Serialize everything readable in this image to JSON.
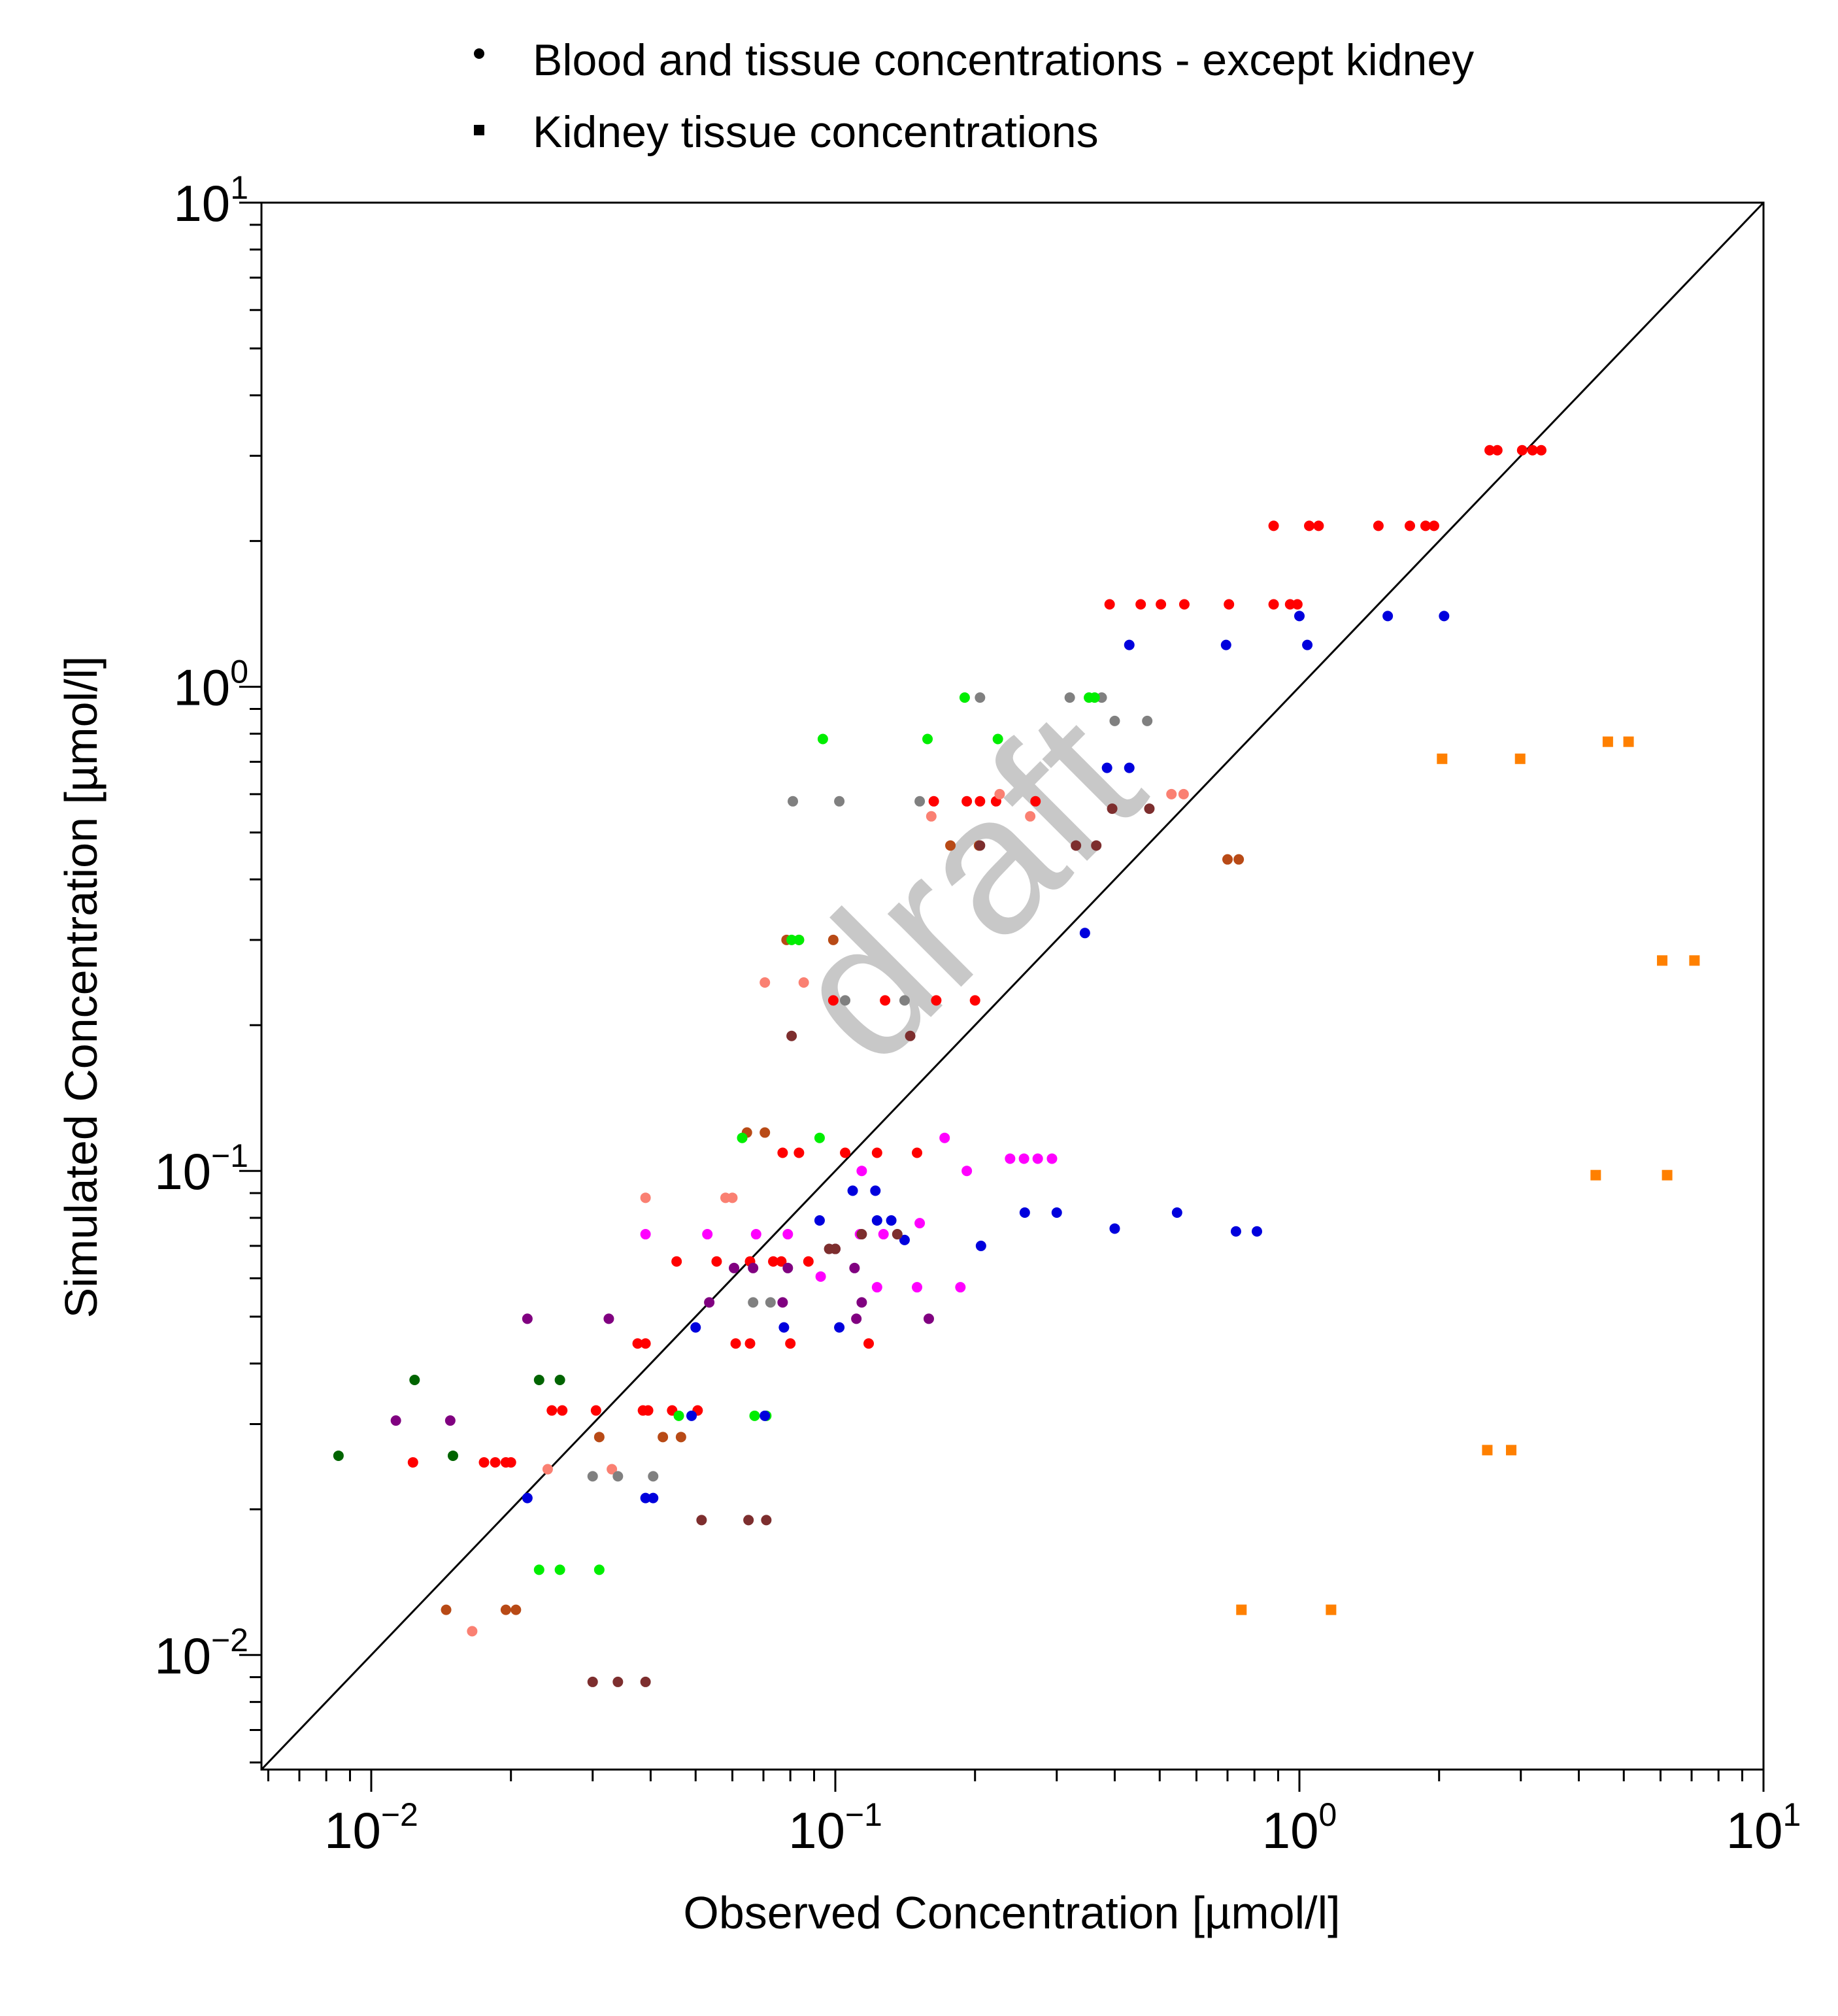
{
  "legend": {
    "items": [
      {
        "label": "Blood and tissue concentrations - except kidney",
        "marker": "circle"
      },
      {
        "label": "Kidney tissue concentrations",
        "marker": "square"
      }
    ]
  },
  "watermark": "draft",
  "chart_data": {
    "type": "scatter",
    "title": "",
    "xlabel": "Observed Concentration [µmol/l]",
    "ylabel": "Simulated Concentration [µmol/l]",
    "xscale": "log",
    "yscale": "log",
    "xlim": [
      0.0058,
      10
    ],
    "ylim": [
      0.0058,
      10
    ],
    "x_ticks": [
      {
        "base": "10",
        "exp": "−2"
      },
      {
        "base": "10",
        "exp": "−1"
      },
      {
        "base": "10",
        "exp": "0"
      },
      {
        "base": "10",
        "exp": "1"
      }
    ],
    "y_ticks": [
      {
        "base": "10",
        "exp": "−2"
      },
      {
        "base": "10",
        "exp": "−1"
      },
      {
        "base": "10",
        "exp": "0"
      },
      {
        "base": "10",
        "exp": "1"
      }
    ],
    "x_tick_values": [
      0.01,
      0.1,
      1,
      10
    ],
    "y_tick_values": [
      0.01,
      0.1,
      1,
      10
    ],
    "identity_line": true,
    "grid": false,
    "legend_position": "top-center",
    "series": [
      {
        "marker": "circle",
        "color": "#ff0000",
        "points": [
          [
            0.0123,
            0.025
          ],
          [
            0.0175,
            0.025
          ],
          [
            0.0185,
            0.025
          ],
          [
            0.0195,
            0.025
          ],
          [
            0.02,
            0.025
          ],
          [
            0.0245,
            0.032
          ],
          [
            0.0258,
            0.032
          ],
          [
            0.0305,
            0.032
          ],
          [
            0.0385,
            0.032
          ],
          [
            0.0395,
            0.032
          ],
          [
            0.0445,
            0.032
          ],
          [
            0.0505,
            0.032
          ],
          [
            0.0375,
            0.044
          ],
          [
            0.039,
            0.044
          ],
          [
            0.0455,
            0.065
          ],
          [
            0.0555,
            0.065
          ],
          [
            0.0655,
            0.065
          ],
          [
            0.0735,
            0.065
          ],
          [
            0.0765,
            0.065
          ],
          [
            0.0875,
            0.065
          ],
          [
            0.061,
            0.044
          ],
          [
            0.0655,
            0.044
          ],
          [
            0.08,
            0.044
          ],
          [
            0.077,
            0.109
          ],
          [
            0.0835,
            0.109
          ],
          [
            0.105,
            0.109
          ],
          [
            0.123,
            0.109
          ],
          [
            0.15,
            0.109
          ],
          [
            0.118,
            0.044
          ],
          [
            0.099,
            0.225
          ],
          [
            0.128,
            0.225
          ],
          [
            0.165,
            0.225
          ],
          [
            0.2,
            0.225
          ],
          [
            0.163,
            0.58
          ],
          [
            0.192,
            0.58
          ],
          [
            0.205,
            0.58
          ],
          [
            0.222,
            0.58
          ],
          [
            0.27,
            0.58
          ],
          [
            0.39,
            1.48
          ],
          [
            0.455,
            1.48
          ],
          [
            0.503,
            1.48
          ],
          [
            0.565,
            1.48
          ],
          [
            0.705,
            1.48
          ],
          [
            0.88,
            1.48
          ],
          [
            0.955,
            1.48
          ],
          [
            0.99,
            1.48
          ],
          [
            0.88,
            2.15
          ],
          [
            1.05,
            2.15
          ],
          [
            1.1,
            2.15
          ],
          [
            1.48,
            2.15
          ],
          [
            1.73,
            2.15
          ],
          [
            1.87,
            2.15
          ],
          [
            1.95,
            2.15
          ],
          [
            2.57,
            3.08
          ],
          [
            2.67,
            3.08
          ],
          [
            3.02,
            3.08
          ],
          [
            3.18,
            3.08
          ],
          [
            3.32,
            3.08
          ]
        ]
      },
      {
        "marker": "circle",
        "color": "#fa8072",
        "points": [
          [
            0.0165,
            0.0112
          ],
          [
            0.024,
            0.0242
          ],
          [
            0.033,
            0.0242
          ],
          [
            0.039,
            0.088
          ],
          [
            0.058,
            0.088
          ],
          [
            0.06,
            0.088
          ],
          [
            0.0705,
            0.245
          ],
          [
            0.0855,
            0.245
          ],
          [
            0.161,
            0.54
          ],
          [
            0.226,
            0.6
          ],
          [
            0.263,
            0.54
          ],
          [
            0.53,
            0.6
          ],
          [
            0.563,
            0.6
          ]
        ]
      },
      {
        "marker": "circle",
        "color": "#b84a16",
        "points": [
          [
            0.0145,
            0.0124
          ],
          [
            0.0195,
            0.0124
          ],
          [
            0.0205,
            0.0124
          ],
          [
            0.031,
            0.0282
          ],
          [
            0.0425,
            0.0282
          ],
          [
            0.0465,
            0.0282
          ],
          [
            0.0645,
            0.12
          ],
          [
            0.0705,
            0.12
          ],
          [
            0.0785,
            0.3
          ],
          [
            0.0835,
            0.3
          ],
          [
            0.099,
            0.3
          ],
          [
            0.177,
            0.47
          ],
          [
            0.204,
            0.47
          ],
          [
            0.7,
            0.44
          ],
          [
            0.74,
            0.44
          ]
        ]
      },
      {
        "marker": "circle",
        "color": "#808080",
        "points": [
          [
            0.03,
            0.0234
          ],
          [
            0.034,
            0.0234
          ],
          [
            0.0405,
            0.0234
          ],
          [
            0.0665,
            0.0535
          ],
          [
            0.0725,
            0.0535
          ],
          [
            0.081,
            0.58
          ],
          [
            0.102,
            0.58
          ],
          [
            0.152,
            0.58
          ],
          [
            0.105,
            0.225
          ],
          [
            0.141,
            0.225
          ],
          [
            0.205,
            0.95
          ],
          [
            0.32,
            0.95
          ],
          [
            0.375,
            0.95
          ],
          [
            0.4,
            0.85
          ],
          [
            0.47,
            0.85
          ]
        ]
      },
      {
        "marker": "circle",
        "color": "#00ee00",
        "points": [
          [
            0.023,
            0.015
          ],
          [
            0.0255,
            0.015
          ],
          [
            0.031,
            0.015
          ],
          [
            0.046,
            0.0312
          ],
          [
            0.067,
            0.0312
          ],
          [
            0.071,
            0.0312
          ],
          [
            0.063,
            0.117
          ],
          [
            0.0925,
            0.117
          ],
          [
            0.0805,
            0.3
          ],
          [
            0.0835,
            0.3
          ],
          [
            0.094,
            0.78
          ],
          [
            0.158,
            0.78
          ],
          [
            0.224,
            0.78
          ],
          [
            0.19,
            0.95
          ],
          [
            0.352,
            0.95
          ],
          [
            0.362,
            0.95
          ]
        ]
      },
      {
        "marker": "circle",
        "color": "#0000dd",
        "points": [
          [
            0.0217,
            0.0211
          ],
          [
            0.039,
            0.0211
          ],
          [
            0.0405,
            0.0211
          ],
          [
            0.049,
            0.0312
          ],
          [
            0.05,
            0.0475
          ],
          [
            0.0705,
            0.0312
          ],
          [
            0.0775,
            0.0475
          ],
          [
            0.0925,
            0.079
          ],
          [
            0.102,
            0.0475
          ],
          [
            0.109,
            0.091
          ],
          [
            0.122,
            0.091
          ],
          [
            0.123,
            0.079
          ],
          [
            0.132,
            0.079
          ],
          [
            0.141,
            0.072
          ],
          [
            0.206,
            0.07
          ],
          [
            0.256,
            0.082
          ],
          [
            0.3,
            0.082
          ],
          [
            0.4,
            0.076
          ],
          [
            0.545,
            0.082
          ],
          [
            0.73,
            0.075
          ],
          [
            0.81,
            0.075
          ],
          [
            0.345,
            0.31
          ],
          [
            0.385,
            0.68
          ],
          [
            0.43,
            0.68
          ],
          [
            0.43,
            1.22
          ],
          [
            0.695,
            1.22
          ],
          [
            1.0,
            1.4
          ],
          [
            1.04,
            1.22
          ],
          [
            1.55,
            1.4
          ],
          [
            2.05,
            1.4
          ]
        ]
      },
      {
        "marker": "circle",
        "color": "#ff00ff",
        "points": [
          [
            0.039,
            0.074
          ],
          [
            0.053,
            0.074
          ],
          [
            0.0675,
            0.074
          ],
          [
            0.079,
            0.074
          ],
          [
            0.093,
            0.0605
          ],
          [
            0.113,
            0.074
          ],
          [
            0.123,
            0.0575
          ],
          [
            0.15,
            0.0575
          ],
          [
            0.152,
            0.078
          ],
          [
            0.186,
            0.0575
          ],
          [
            0.192,
            0.1
          ],
          [
            0.172,
            0.117
          ],
          [
            0.238,
            0.106
          ],
          [
            0.255,
            0.106
          ],
          [
            0.273,
            0.106
          ],
          [
            0.293,
            0.106
          ],
          [
            0.114,
            0.1
          ],
          [
            0.127,
            0.074
          ]
        ]
      },
      {
        "marker": "circle",
        "color": "#800080",
        "points": [
          [
            0.0113,
            0.0305
          ],
          [
            0.0148,
            0.0305
          ],
          [
            0.0217,
            0.0495
          ],
          [
            0.0325,
            0.0495
          ],
          [
            0.0535,
            0.0535
          ],
          [
            0.0665,
            0.063
          ],
          [
            0.0605,
            0.063
          ],
          [
            0.077,
            0.0535
          ],
          [
            0.079,
            0.063
          ],
          [
            0.11,
            0.063
          ],
          [
            0.111,
            0.0495
          ],
          [
            0.114,
            0.0535
          ],
          [
            0.159,
            0.0495
          ],
          [
            0.1,
            0.069
          ]
        ]
      },
      {
        "marker": "circle",
        "color": "#7d2e2e",
        "points": [
          [
            0.03,
            0.0088
          ],
          [
            0.034,
            0.0088
          ],
          [
            0.039,
            0.0088
          ],
          [
            0.0515,
            0.019
          ],
          [
            0.065,
            0.019
          ],
          [
            0.071,
            0.019
          ],
          [
            0.0805,
            0.19
          ],
          [
            0.145,
            0.19
          ],
          [
            0.097,
            0.069
          ],
          [
            0.1,
            0.069
          ],
          [
            0.114,
            0.074
          ],
          [
            0.136,
            0.074
          ],
          [
            0.205,
            0.47
          ],
          [
            0.33,
            0.47
          ],
          [
            0.365,
            0.47
          ],
          [
            0.395,
            0.56
          ],
          [
            0.475,
            0.56
          ]
        ]
      },
      {
        "marker": "circle",
        "color": "#006400",
        "points": [
          [
            0.0085,
            0.0258
          ],
          [
            0.0124,
            0.037
          ],
          [
            0.015,
            0.0258
          ],
          [
            0.023,
            0.037
          ],
          [
            0.0255,
            0.037
          ]
        ]
      },
      {
        "marker": "square",
        "color": "#ff8000",
        "points": [
          [
            0.75,
            0.0124
          ],
          [
            1.17,
            0.0124
          ],
          [
            2.03,
            0.71
          ],
          [
            2.99,
            0.71
          ],
          [
            4.62,
            0.77
          ],
          [
            5.12,
            0.77
          ],
          [
            6.05,
            0.272
          ],
          [
            7.1,
            0.272
          ],
          [
            4.35,
            0.098
          ],
          [
            6.2,
            0.098
          ],
          [
            2.54,
            0.0265
          ],
          [
            2.86,
            0.0265
          ]
        ]
      }
    ]
  }
}
